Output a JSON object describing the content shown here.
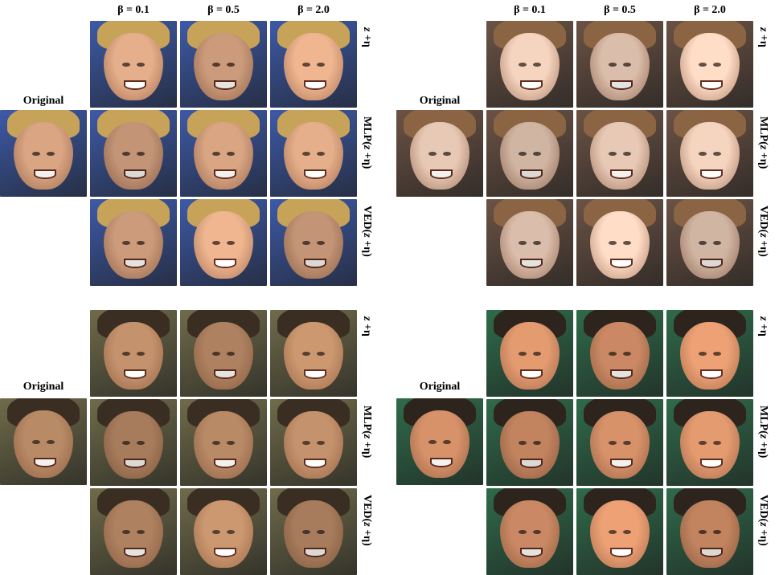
{
  "column_labels": [
    "β = 0.1",
    "β = 0.5",
    "β = 2.0"
  ],
  "original_label": "Original",
  "row_labels": [
    {
      "prefix": "",
      "var": "z",
      "suffix": " +η"
    },
    {
      "prefix": "MLP(",
      "var": "z",
      "suffix": " +η)"
    },
    {
      "prefix": "VED(",
      "var": "z",
      "suffix": " +η)"
    }
  ],
  "panels": [
    {
      "id": "top-left",
      "skin": "#d9a583",
      "hair": "#c7a35a",
      "bg": "#3d5aa8"
    },
    {
      "id": "top-right",
      "skin": "#e8c9b5",
      "hair": "#8a6443",
      "bg": "#6b5345"
    },
    {
      "id": "bottom-left",
      "skin": "#b98a66",
      "hair": "#3a2d22",
      "bg": "#6f6b4a"
    },
    {
      "id": "bottom-right",
      "skin": "#d7926a",
      "hair": "#2d241e",
      "bg": "#2f6b4a"
    }
  ]
}
